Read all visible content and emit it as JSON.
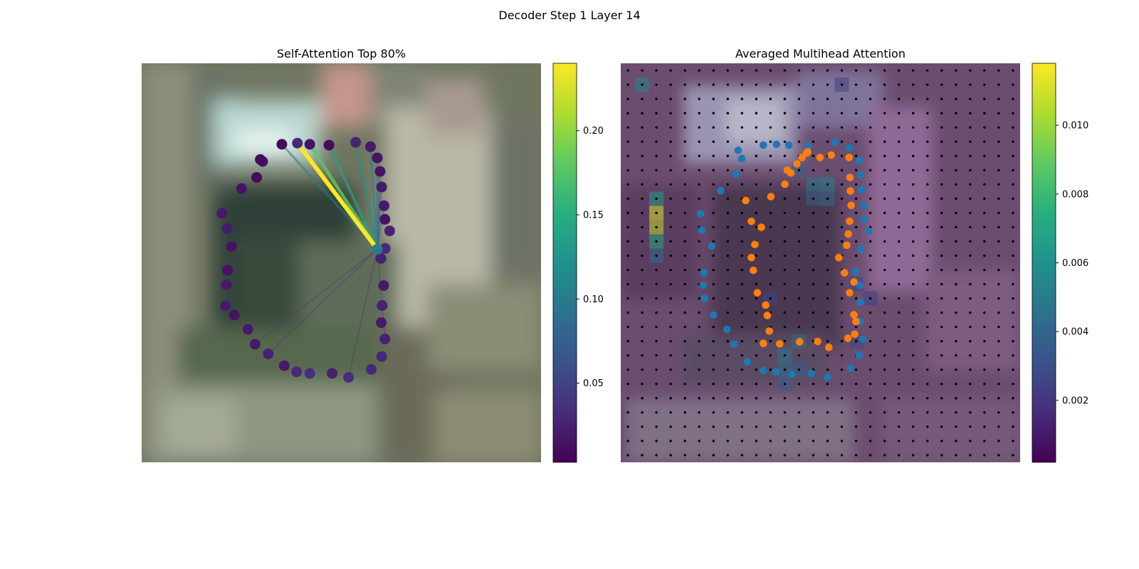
{
  "figure": {
    "title": "Decoder Step 1 Layer 14"
  },
  "chart_data": [
    {
      "type": "scatter",
      "title": "Self-Attention Top 80%",
      "colorbar": {
        "ticks": [
          0.05,
          0.1,
          0.15,
          0.2
        ],
        "tick_labels": [
          "0.05",
          "0.10",
          "0.15",
          "0.20"
        ],
        "range": [
          0.003,
          0.24
        ],
        "colormap": "viridis"
      },
      "query_point_index": 19,
      "points": [
        [
          0.351,
          0.203
        ],
        [
          0.39,
          0.2
        ],
        [
          0.421,
          0.203
        ],
        [
          0.469,
          0.205
        ],
        [
          0.536,
          0.198
        ],
        [
          0.573,
          0.209
        ],
        [
          0.59,
          0.237
        ],
        [
          0.597,
          0.271
        ],
        [
          0.601,
          0.31
        ],
        [
          0.607,
          0.357
        ],
        [
          0.609,
          0.391
        ],
        [
          0.621,
          0.42
        ],
        [
          0.61,
          0.464
        ],
        [
          0.599,
          0.489
        ],
        [
          0.606,
          0.557
        ],
        [
          0.602,
          0.607
        ],
        [
          0.6,
          0.65
        ],
        [
          0.609,
          0.691
        ],
        [
          0.601,
          0.735
        ],
        [
          0.59,
          0.466
        ],
        [
          0.575,
          0.767
        ],
        [
          0.518,
          0.787
        ],
        [
          0.477,
          0.777
        ],
        [
          0.421,
          0.777
        ],
        [
          0.388,
          0.773
        ],
        [
          0.357,
          0.758
        ],
        [
          0.317,
          0.728
        ],
        [
          0.284,
          0.704
        ],
        [
          0.266,
          0.667
        ],
        [
          0.232,
          0.631
        ],
        [
          0.21,
          0.608
        ],
        [
          0.212,
          0.555
        ],
        [
          0.215,
          0.518
        ],
        [
          0.225,
          0.459
        ],
        [
          0.214,
          0.414
        ],
        [
          0.201,
          0.376
        ],
        [
          0.25,
          0.314
        ],
        [
          0.288,
          0.286
        ],
        [
          0.303,
          0.246
        ],
        [
          0.297,
          0.241
        ]
      ],
      "point_values": [
        0.01,
        0.03,
        0.015,
        0.01,
        0.025,
        0.02,
        0.015,
        0.015,
        0.02,
        0.02,
        0.015,
        0.025,
        0.03,
        0.025,
        0.02,
        0.025,
        0.02,
        0.025,
        0.03,
        0.1,
        0.03,
        0.035,
        0.025,
        0.035,
        0.03,
        0.02,
        0.025,
        0.02,
        0.02,
        0.015,
        0.02,
        0.02,
        0.015,
        0.015,
        0.02,
        0.02,
        0.015,
        0.01,
        0.015,
        0.01
      ],
      "links": [
        {
          "to": 1,
          "value": 0.24
        },
        {
          "to": 2,
          "value": 0.18
        },
        {
          "to": 3,
          "value": 0.14
        },
        {
          "to": 4,
          "value": 0.12
        },
        {
          "to": 0,
          "value": 0.1
        },
        {
          "to": 5,
          "value": 0.11
        },
        {
          "to": 6,
          "value": 0.09
        },
        {
          "to": 7,
          "value": 0.08
        },
        {
          "to": 8,
          "value": 0.06
        },
        {
          "to": 9,
          "value": 0.05
        },
        {
          "to": 27,
          "value": 0.04
        },
        {
          "to": 26,
          "value": 0.04
        },
        {
          "to": 21,
          "value": 0.03
        },
        {
          "to": 17,
          "value": 0.03
        },
        {
          "to": 12,
          "value": 0.03
        }
      ]
    },
    {
      "type": "scatter",
      "title": "Averaged Multihead Attention",
      "colorbar": {
        "ticks": [
          0.002,
          0.004,
          0.006,
          0.008,
          0.01
        ],
        "tick_labels": [
          "0.002",
          "0.004",
          "0.006",
          "0.008",
          "0.010"
        ],
        "range": [
          0.0002,
          0.0118
        ],
        "colormap": "viridis"
      },
      "grid_size": 28,
      "series": [
        {
          "color": "#1f77b4",
          "points": [
            [
              0.357,
              0.205
            ],
            [
              0.39,
              0.203
            ],
            [
              0.421,
              0.205
            ],
            [
              0.469,
              0.207
            ],
            [
              0.536,
              0.198
            ],
            [
              0.573,
              0.212
            ],
            [
              0.597,
              0.243
            ],
            [
              0.601,
              0.28
            ],
            [
              0.603,
              0.316
            ],
            [
              0.609,
              0.357
            ],
            [
              0.609,
              0.391
            ],
            [
              0.621,
              0.42
            ],
            [
              0.601,
              0.466
            ],
            [
              0.589,
              0.522
            ],
            [
              0.599,
              0.557
            ],
            [
              0.601,
              0.599
            ],
            [
              0.6,
              0.647
            ],
            [
              0.606,
              0.691
            ],
            [
              0.597,
              0.731
            ],
            [
              0.575,
              0.764
            ],
            [
              0.518,
              0.787
            ],
            [
              0.477,
              0.777
            ],
            [
              0.428,
              0.779
            ],
            [
              0.388,
              0.773
            ],
            [
              0.357,
              0.77
            ],
            [
              0.317,
              0.748
            ],
            [
              0.284,
              0.704
            ],
            [
              0.266,
              0.667
            ],
            [
              0.232,
              0.631
            ],
            [
              0.21,
              0.589
            ],
            [
              0.206,
              0.556
            ],
            [
              0.208,
              0.525
            ],
            [
              0.228,
              0.458
            ],
            [
              0.203,
              0.418
            ],
            [
              0.2,
              0.377
            ],
            [
              0.25,
              0.319
            ],
            [
              0.288,
              0.278
            ],
            [
              0.303,
              0.239
            ],
            [
              0.294,
              0.218
            ]
          ]
        },
        {
          "color": "#ff7f0e",
          "points": [
            [
              0.417,
              0.268
            ],
            [
              0.441,
              0.252
            ],
            [
              0.454,
              0.236
            ],
            [
              0.465,
              0.225
            ],
            [
              0.468,
              0.222
            ],
            [
              0.499,
              0.236
            ],
            [
              0.527,
              0.23
            ],
            [
              0.572,
              0.236
            ],
            [
              0.574,
              0.286
            ],
            [
              0.575,
              0.32
            ],
            [
              0.577,
              0.356
            ],
            [
              0.573,
              0.396
            ],
            [
              0.57,
              0.428
            ],
            [
              0.566,
              0.456
            ],
            [
              0.546,
              0.487
            ],
            [
              0.56,
              0.525
            ],
            [
              0.584,
              0.548
            ],
            [
              0.573,
              0.575
            ],
            [
              0.584,
              0.63
            ],
            [
              0.589,
              0.647
            ],
            [
              0.586,
              0.679
            ],
            [
              0.569,
              0.689
            ],
            [
              0.521,
              0.712
            ],
            [
              0.493,
              0.697
            ],
            [
              0.448,
              0.698
            ],
            [
              0.398,
              0.703
            ],
            [
              0.357,
              0.702
            ],
            [
              0.372,
              0.671
            ],
            [
              0.367,
              0.632
            ],
            [
              0.363,
              0.606
            ],
            [
              0.342,
              0.575
            ],
            [
              0.332,
              0.519
            ],
            [
              0.327,
              0.487
            ],
            [
              0.336,
              0.454
            ],
            [
              0.352,
              0.411
            ],
            [
              0.327,
              0.396
            ],
            [
              0.313,
              0.344
            ],
            [
              0.376,
              0.334
            ],
            [
              0.411,
              0.303
            ],
            [
              0.426,
              0.275
            ]
          ]
        }
      ]
    }
  ]
}
